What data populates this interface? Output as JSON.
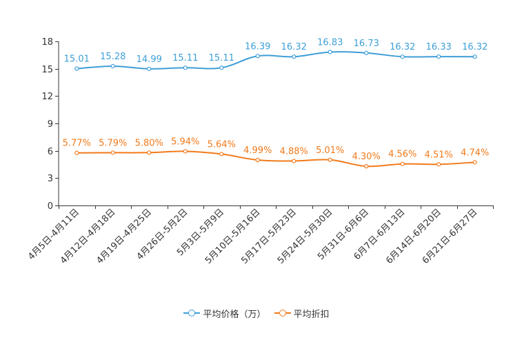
{
  "chart_data": {
    "type": "line",
    "title": "",
    "xlabel": "",
    "ylabel": "",
    "ylim": [
      0,
      18
    ],
    "yticks": [
      0,
      3,
      6,
      9,
      12,
      15,
      18
    ],
    "grid": false,
    "legend_position": "bottom-center",
    "categories": [
      "4月5日-4月11日",
      "4月12日-4月18日",
      "4月19日-4月25日",
      "4月26日-5月2日",
      "5月3日-5月9日",
      "5月10日-5月16日",
      "5月17日-5月23日",
      "5月24日-5月30日",
      "5月31日-6月6日",
      "6月7日-6月13日",
      "6月14日-6月20日",
      "6月21日-6月27日"
    ],
    "series": [
      {
        "name": "平均价格（万）",
        "color": "#3d9ed6",
        "values": [
          15.01,
          15.28,
          14.99,
          15.11,
          15.11,
          16.39,
          16.32,
          16.83,
          16.73,
          16.32,
          16.33,
          16.32
        ],
        "labels": [
          "15.01",
          "15.28",
          "14.99",
          "15.11",
          "15.11",
          "16.39",
          "16.32",
          "16.83",
          "16.73",
          "16.32",
          "16.33",
          "16.32"
        ]
      },
      {
        "name": "平均折扣",
        "color": "#f27a1a",
        "values": [
          5.77,
          5.79,
          5.8,
          5.94,
          5.64,
          4.99,
          4.88,
          5.01,
          4.3,
          4.56,
          4.51,
          4.74
        ],
        "labels": [
          "5.77%",
          "5.79%",
          "5.80%",
          "5.94%",
          "5.64%",
          "4.99%",
          "4.88%",
          "5.01%",
          "4.30%",
          "4.56%",
          "4.51%",
          "4.74%"
        ]
      }
    ]
  }
}
